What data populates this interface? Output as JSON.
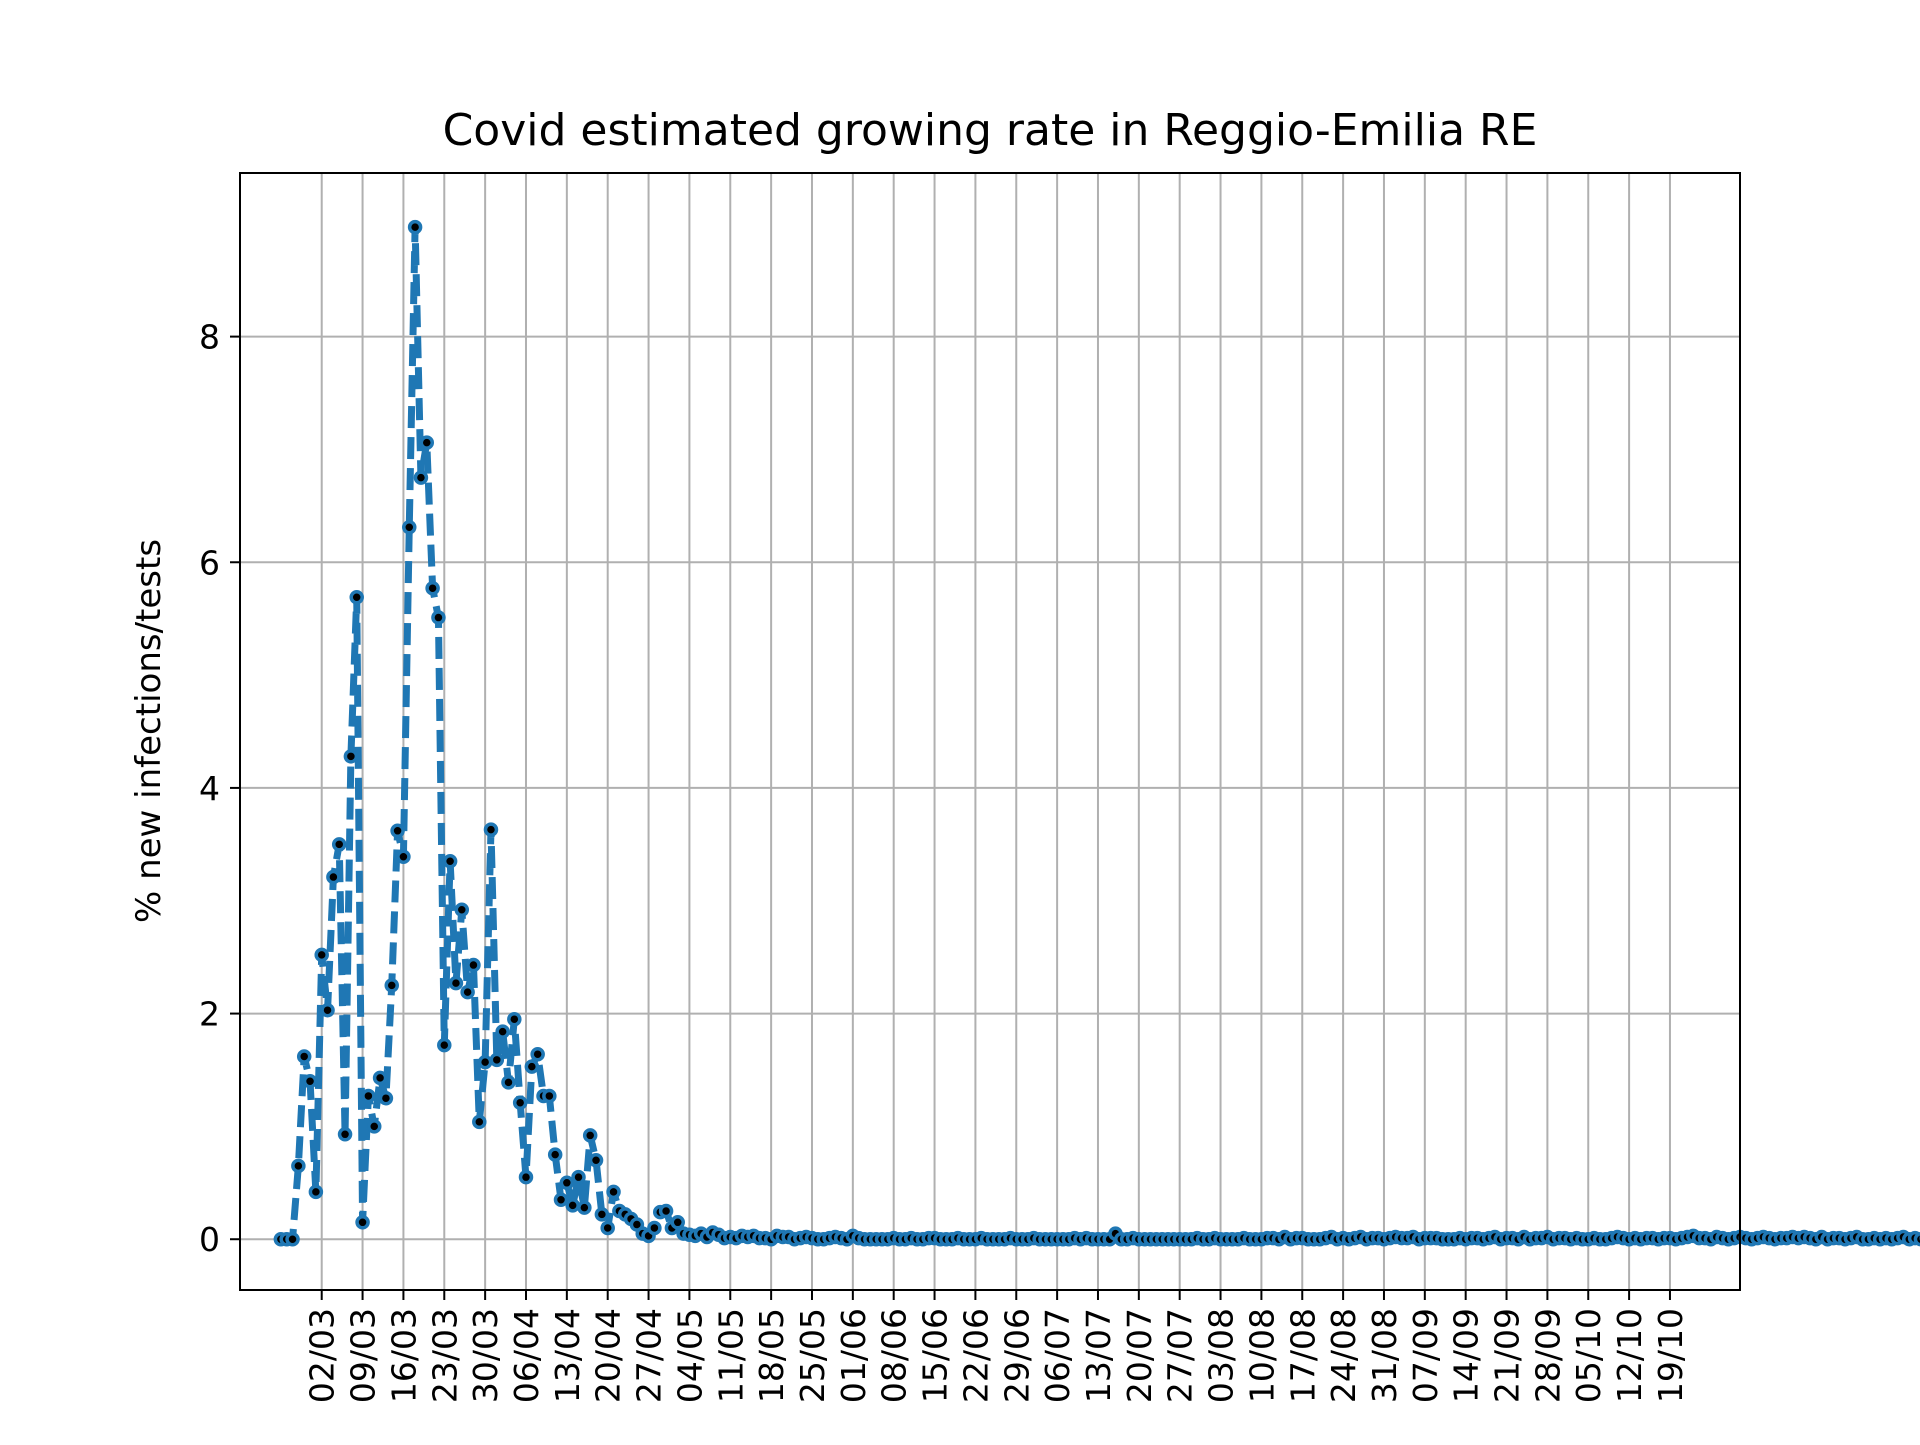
{
  "chart_data": {
    "type": "line",
    "title": "Covid estimated growing rate in Reggio-Emilia RE",
    "xlabel": "",
    "ylabel": "% new infections/tests",
    "x_start_date": "2020-02-24",
    "x_ticks": [
      "02/03",
      "09/03",
      "16/03",
      "23/03",
      "30/03",
      "06/04",
      "13/04",
      "20/04",
      "27/04",
      "04/05",
      "11/05",
      "18/05",
      "25/05",
      "01/06",
      "08/06",
      "15/06",
      "22/06",
      "29/06",
      "06/07",
      "13/07",
      "20/07",
      "27/07",
      "03/08",
      "10/08",
      "17/08",
      "24/08",
      "31/08",
      "07/09",
      "14/09",
      "21/09",
      "28/09",
      "05/10",
      "12/10",
      "19/10"
    ],
    "y_ticks": [
      0,
      2,
      4,
      6,
      8
    ],
    "xlim": [
      "2020-02-17",
      "2020-10-31"
    ],
    "ylim": [
      -0.45,
      9.45
    ],
    "grid": true,
    "series": [
      {
        "name": "",
        "color": "#1f77b4",
        "line_style": "dashed",
        "marker": "circle",
        "values": [
          0,
          0,
          0,
          0.65,
          1.62,
          1.4,
          0.42,
          2.52,
          2.03,
          3.21,
          3.5,
          0.93,
          4.28,
          5.69,
          0.15,
          1.27,
          1.0,
          1.43,
          1.25,
          2.25,
          3.62,
          3.39,
          6.31,
          8.97,
          6.75,
          7.06,
          5.77,
          5.51,
          1.72,
          3.35,
          2.27,
          2.92,
          2.19,
          2.43,
          1.04,
          1.57,
          3.63,
          1.59,
          1.84,
          1.39,
          1.95,
          1.21,
          0.55,
          1.53,
          1.64,
          1.27,
          1.27,
          0.75,
          0.35,
          0.5,
          0.3,
          0.55,
          0.28,
          0.92,
          0.7,
          0.22,
          0.1,
          0.42,
          0.25,
          0.22,
          0.18,
          0.13,
          0.05,
          0.03,
          0.1,
          0.24,
          0.25,
          0.1,
          0.15,
          0.05,
          0.04,
          0.03,
          0.05,
          0.02,
          0.06,
          0.04,
          0.01,
          0.02,
          0.01,
          0.03,
          0.02,
          0.03,
          0.01,
          0.01,
          0.0,
          0.03,
          0.02,
          0.02,
          0.0,
          0.01,
          0.02,
          0.01,
          0.0,
          0.0,
          0.01,
          0.02,
          0.01,
          0.0,
          0.03,
          0.01,
          0.0,
          0.0,
          0.0,
          0.0,
          0.0,
          0.01,
          0.0,
          0.0,
          0.01,
          0.0,
          0.0,
          0.01,
          0.01,
          0.0,
          0.0,
          0.0,
          0.01,
          0.0,
          0.0,
          0.0,
          0.01,
          0.0,
          0.0,
          0.0,
          0.0,
          0.01,
          0.0,
          0.0,
          0.0,
          0.01,
          0.0,
          0.0,
          0.0,
          0.0,
          0.0,
          0.0,
          0.01,
          0.0,
          0.01,
          0.0,
          0.0,
          0.0,
          0.0,
          0.05,
          0.0,
          0.0,
          0.01,
          0.0,
          0.0,
          0.0,
          0.0,
          0.0,
          0.0,
          0.0,
          0.0,
          0.0,
          0.0,
          0.01,
          0.0,
          0.0,
          0.01,
          0.0,
          0.0,
          0.0,
          0.0,
          0.01,
          0.0,
          0.0,
          0.0,
          0.01,
          0.01,
          0.0,
          0.02,
          0.0,
          0.01,
          0.01,
          0.0,
          0.0,
          0.0,
          0.01,
          0.02,
          0.0,
          0.01,
          0.0,
          0.01,
          0.02,
          0.0,
          0.01,
          0.01,
          0.0,
          0.01,
          0.02,
          0.01,
          0.01,
          0.02,
          0.0,
          0.01,
          0.01,
          0.01,
          0.0,
          0.0,
          0.0,
          0.01,
          0.0,
          0.01,
          0.01,
          0.0,
          0.01,
          0.02,
          0.0,
          0.01,
          0.01,
          0.0,
          0.02,
          0.0,
          0.01,
          0.01,
          0.02,
          0.0,
          0.01,
          0.01,
          0.0,
          0.01,
          0.0,
          0.0,
          0.01,
          0.0,
          0.0,
          0.01,
          0.02,
          0.01,
          0.0,
          0.01,
          0.0,
          0.01,
          0.01,
          0.0,
          0.01,
          0.01,
          0.0,
          0.01,
          0.02,
          0.03,
          0.01,
          0.01,
          0.0,
          0.02,
          0.01,
          0.0,
          0.01,
          0.02,
          0.01,
          0.0,
          0.01,
          0.02,
          0.01,
          0.0,
          0.01,
          0.01,
          0.02,
          0.01,
          0.02,
          0.01,
          0.0,
          0.02,
          0.0,
          0.01,
          0.01,
          0.0,
          0.01,
          0.02,
          0.0,
          0.0,
          0.01,
          0.0,
          0.01,
          0.0,
          0.01,
          0.02,
          0.0,
          0.01,
          0.0,
          0.01,
          0.0,
          0.02,
          0.01,
          0.0,
          0.01,
          0.02,
          0.02,
          0.02,
          0.03,
          0.02,
          0.03,
          0.03,
          0.04,
          0.04,
          0.04,
          0.04
        ]
      }
    ]
  }
}
